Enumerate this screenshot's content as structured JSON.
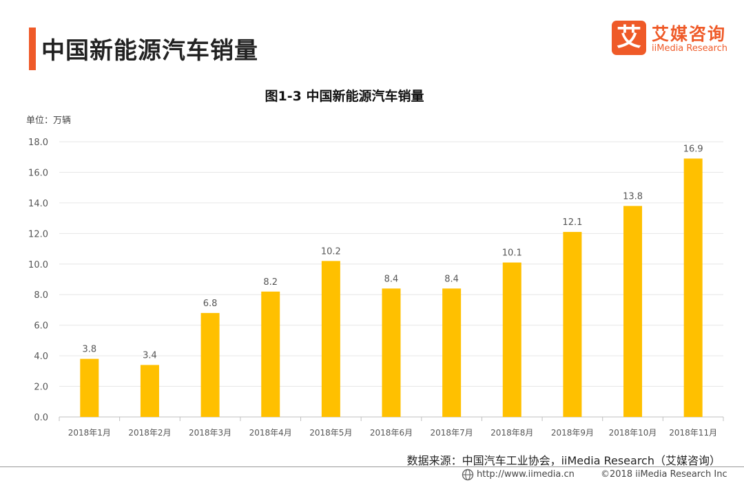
{
  "header": {
    "title": "中国新能源汽车销量",
    "logo_mark": "艾",
    "logo_cn": "艾媒咨询",
    "logo_en": "iiMedia Research",
    "accent_color": "#ef5a28"
  },
  "unit_label": "单位：万辆",
  "source": "数据来源：中国汽车工业协会，iiMedia Research（艾媒咨询）",
  "footer": {
    "url": "http://www.iimedia.cn",
    "copyright": "©2018  iiMedia Research  Inc",
    "icon": "globe-icon"
  },
  "chart_data": {
    "type": "bar",
    "title": "图1-3 中国新能源汽车销量",
    "xlabel": "",
    "ylabel": "",
    "categories": [
      "2018年1月",
      "2018年2月",
      "2018年3月",
      "2018年4月",
      "2018年5月",
      "2018年6月",
      "2018年7月",
      "2018年8月",
      "2018年9月",
      "2018年10月",
      "2018年11月"
    ],
    "values": [
      3.8,
      3.4,
      6.8,
      8.2,
      10.2,
      8.4,
      8.4,
      10.1,
      12.1,
      13.8,
      16.9
    ],
    "value_labels": [
      "3.8",
      "3.4",
      "6.8",
      "8.2",
      "10.2",
      "8.4",
      "8.4",
      "10.1",
      "12.1",
      "13.8",
      "16.9"
    ],
    "ylim": [
      0,
      18
    ],
    "yticks": [
      "0.0",
      "2.0",
      "4.0",
      "6.0",
      "8.0",
      "10.0",
      "12.0",
      "14.0",
      "16.0",
      "18.0"
    ],
    "grid": true,
    "legend": "none",
    "bar_color": "#ffc000"
  }
}
